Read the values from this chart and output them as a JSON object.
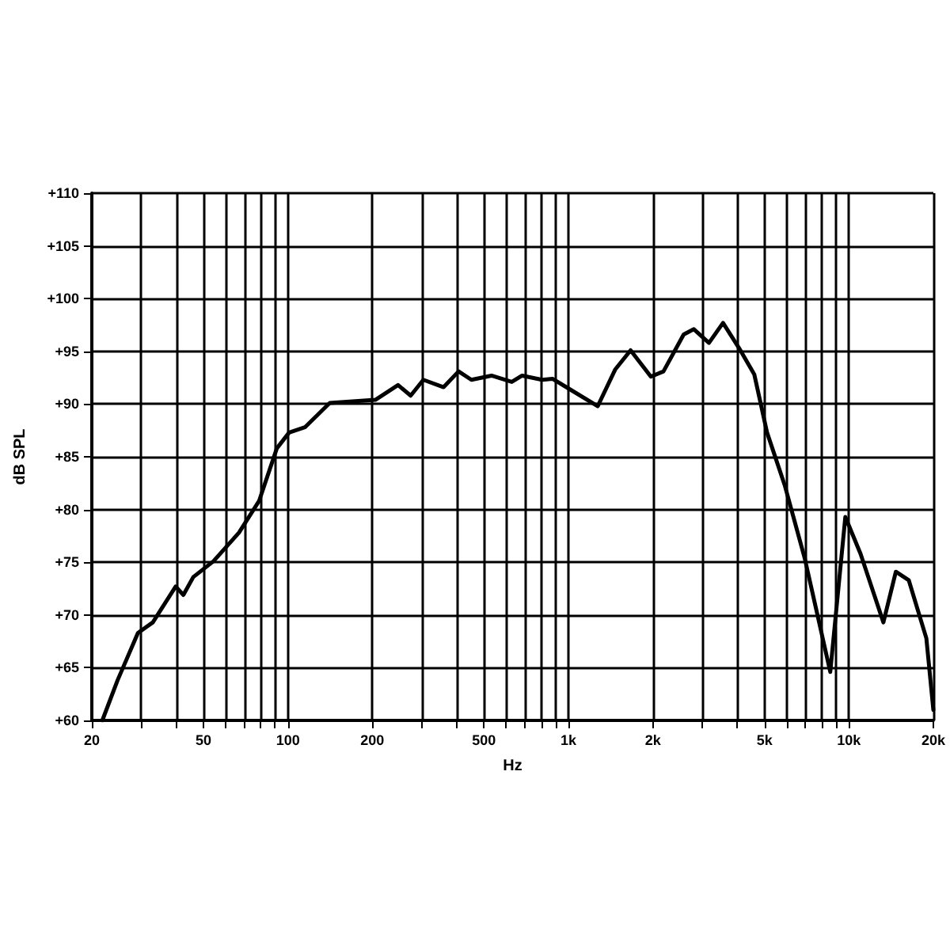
{
  "chart_data": {
    "type": "line",
    "xlabel": "Hz",
    "ylabel": "dB SPL",
    "log": "x",
    "grid": true,
    "marker": "none",
    "line_style": "solid",
    "xlim": [
      20,
      20000
    ],
    "xticks": [
      20,
      {
        "value": 30,
        "label": null
      },
      {
        "value": 40,
        "label": null
      },
      50,
      {
        "value": 60,
        "label": null
      },
      {
        "value": 70,
        "label": null
      },
      {
        "value": 80,
        "label": null
      },
      {
        "value": 90,
        "label": null
      },
      100,
      200,
      {
        "value": 300,
        "label": null
      },
      {
        "value": 400,
        "label": null
      },
      500,
      {
        "value": 600,
        "label": null
      },
      {
        "value": 700,
        "label": null
      },
      {
        "value": 800,
        "label": null
      },
      {
        "value": 900,
        "label": null
      },
      {
        "value": 1000,
        "label": "1k"
      },
      {
        "value": 2000,
        "label": "2k"
      },
      {
        "value": 3000,
        "label": null
      },
      {
        "value": 4000,
        "label": null
      },
      {
        "value": 5000,
        "label": "5k"
      },
      {
        "value": 6000,
        "label": null
      },
      {
        "value": 7000,
        "label": null
      },
      {
        "value": 8000,
        "label": null
      },
      {
        "value": 9000,
        "label": null
      },
      {
        "value": 10000,
        "label": "10k"
      },
      {
        "value": 20000,
        "label": "20k"
      }
    ],
    "ylim": [
      60,
      110
    ],
    "yticks": [
      {
        "value": 60,
        "label": "+60"
      },
      {
        "value": 65,
        "label": "+65"
      },
      {
        "value": 70,
        "label": "+70"
      },
      {
        "value": 75,
        "label": "+75"
      },
      {
        "value": 80,
        "label": "+80"
      },
      {
        "value": 85,
        "label": "+85"
      },
      {
        "value": 90,
        "label": "+90"
      },
      {
        "value": 95,
        "label": "+95"
      },
      {
        "value": 100,
        "label": "+100"
      },
      {
        "value": 105,
        "label": "+105"
      },
      {
        "value": 110,
        "label": "+110"
      }
    ],
    "x": [
      21.8,
      24.7,
      29.2,
      33.0,
      39.8,
      42.4,
      46.0,
      54.3,
      66.9,
      78.9,
      91.3,
      101,
      115,
      141,
      205,
      247,
      274,
      304,
      359,
      406,
      451,
      532,
      628,
      684,
      806,
      877,
      1012,
      1272,
      1470,
      1666,
      1968,
      2182,
      2576,
      2800,
      3170,
      3558,
      4060,
      4600,
      5107,
      5904,
      6968,
      8580,
      9710,
      11000,
      13270,
      14700,
      16340,
      18880,
      20000
    ],
    "series": [
      {
        "color": "#000000",
        "values": [
          60.0,
          63.8,
          68.3,
          69.3,
          72.7,
          71.9,
          73.6,
          75.1,
          77.8,
          80.8,
          85.8,
          87.3,
          87.8,
          90.1,
          90.4,
          91.8,
          90.8,
          92.3,
          91.6,
          93.1,
          92.3,
          92.7,
          92.1,
          92.7,
          92.3,
          92.4,
          91.4,
          89.8,
          93.3,
          95.1,
          92.6,
          93.1,
          96.6,
          97.1,
          95.8,
          97.7,
          95.3,
          92.8,
          87.3,
          82.3,
          75.3,
          64.6,
          79.3,
          75.8,
          69.3,
          74.1,
          73.3,
          67.8,
          61.0
        ]
      }
    ]
  }
}
